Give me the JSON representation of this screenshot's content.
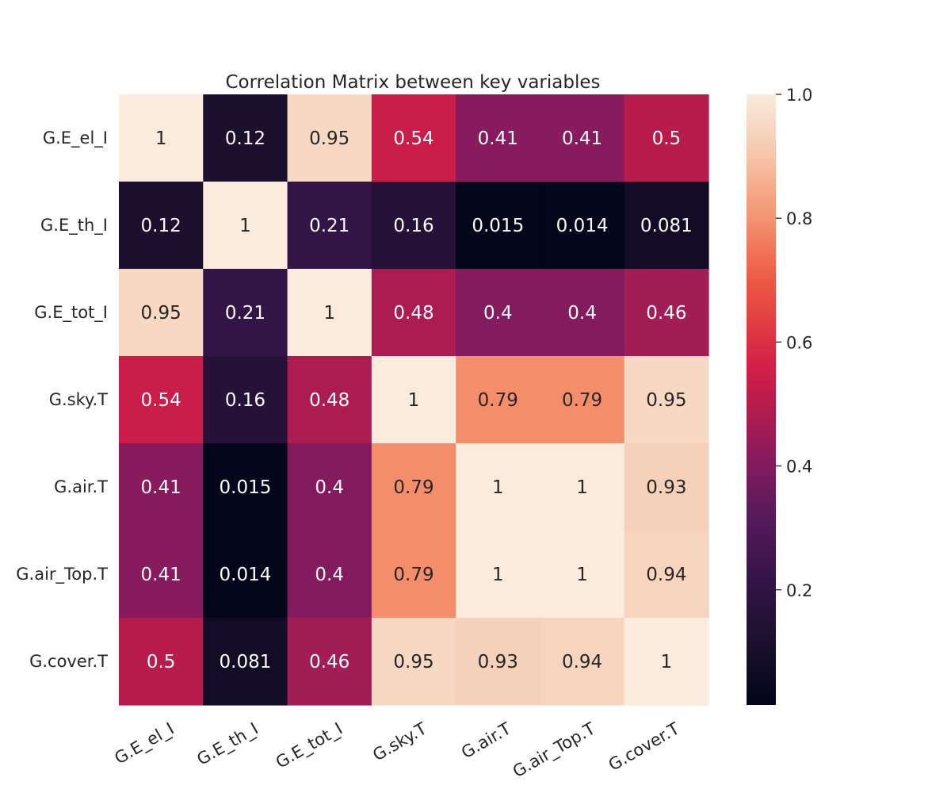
{
  "chart_data": {
    "type": "heatmap",
    "title": "Correlation Matrix between key variables",
    "x_categories": [
      "G.E_el_I",
      "G.E_th_I",
      "G.E_tot_I",
      "G.sky.T",
      "G.air.T",
      "G.air_Top.T",
      "G.cover.T"
    ],
    "y_categories": [
      "G.E_el_I",
      "G.E_th_I",
      "G.E_tot_I",
      "G.sky.T",
      "G.air.T",
      "G.air_Top.T",
      "G.cover.T"
    ],
    "values": [
      [
        1,
        0.12,
        0.95,
        0.54,
        0.41,
        0.41,
        0.5
      ],
      [
        0.12,
        1,
        0.21,
        0.16,
        0.015,
        0.014,
        0.081
      ],
      [
        0.95,
        0.21,
        1,
        0.48,
        0.4,
        0.4,
        0.46
      ],
      [
        0.54,
        0.16,
        0.48,
        1,
        0.79,
        0.79,
        0.95
      ],
      [
        0.41,
        0.015,
        0.4,
        0.79,
        1,
        1,
        0.93
      ],
      [
        0.41,
        0.014,
        0.4,
        0.79,
        1,
        1,
        0.94
      ],
      [
        0.5,
        0.081,
        0.46,
        0.95,
        0.93,
        0.94,
        1
      ]
    ],
    "colorbar": {
      "range": [
        0.014,
        1.0
      ],
      "ticks": [
        "0.2",
        "0.4",
        "0.6",
        "0.8",
        "1.0"
      ],
      "colormap": "rocket"
    }
  }
}
